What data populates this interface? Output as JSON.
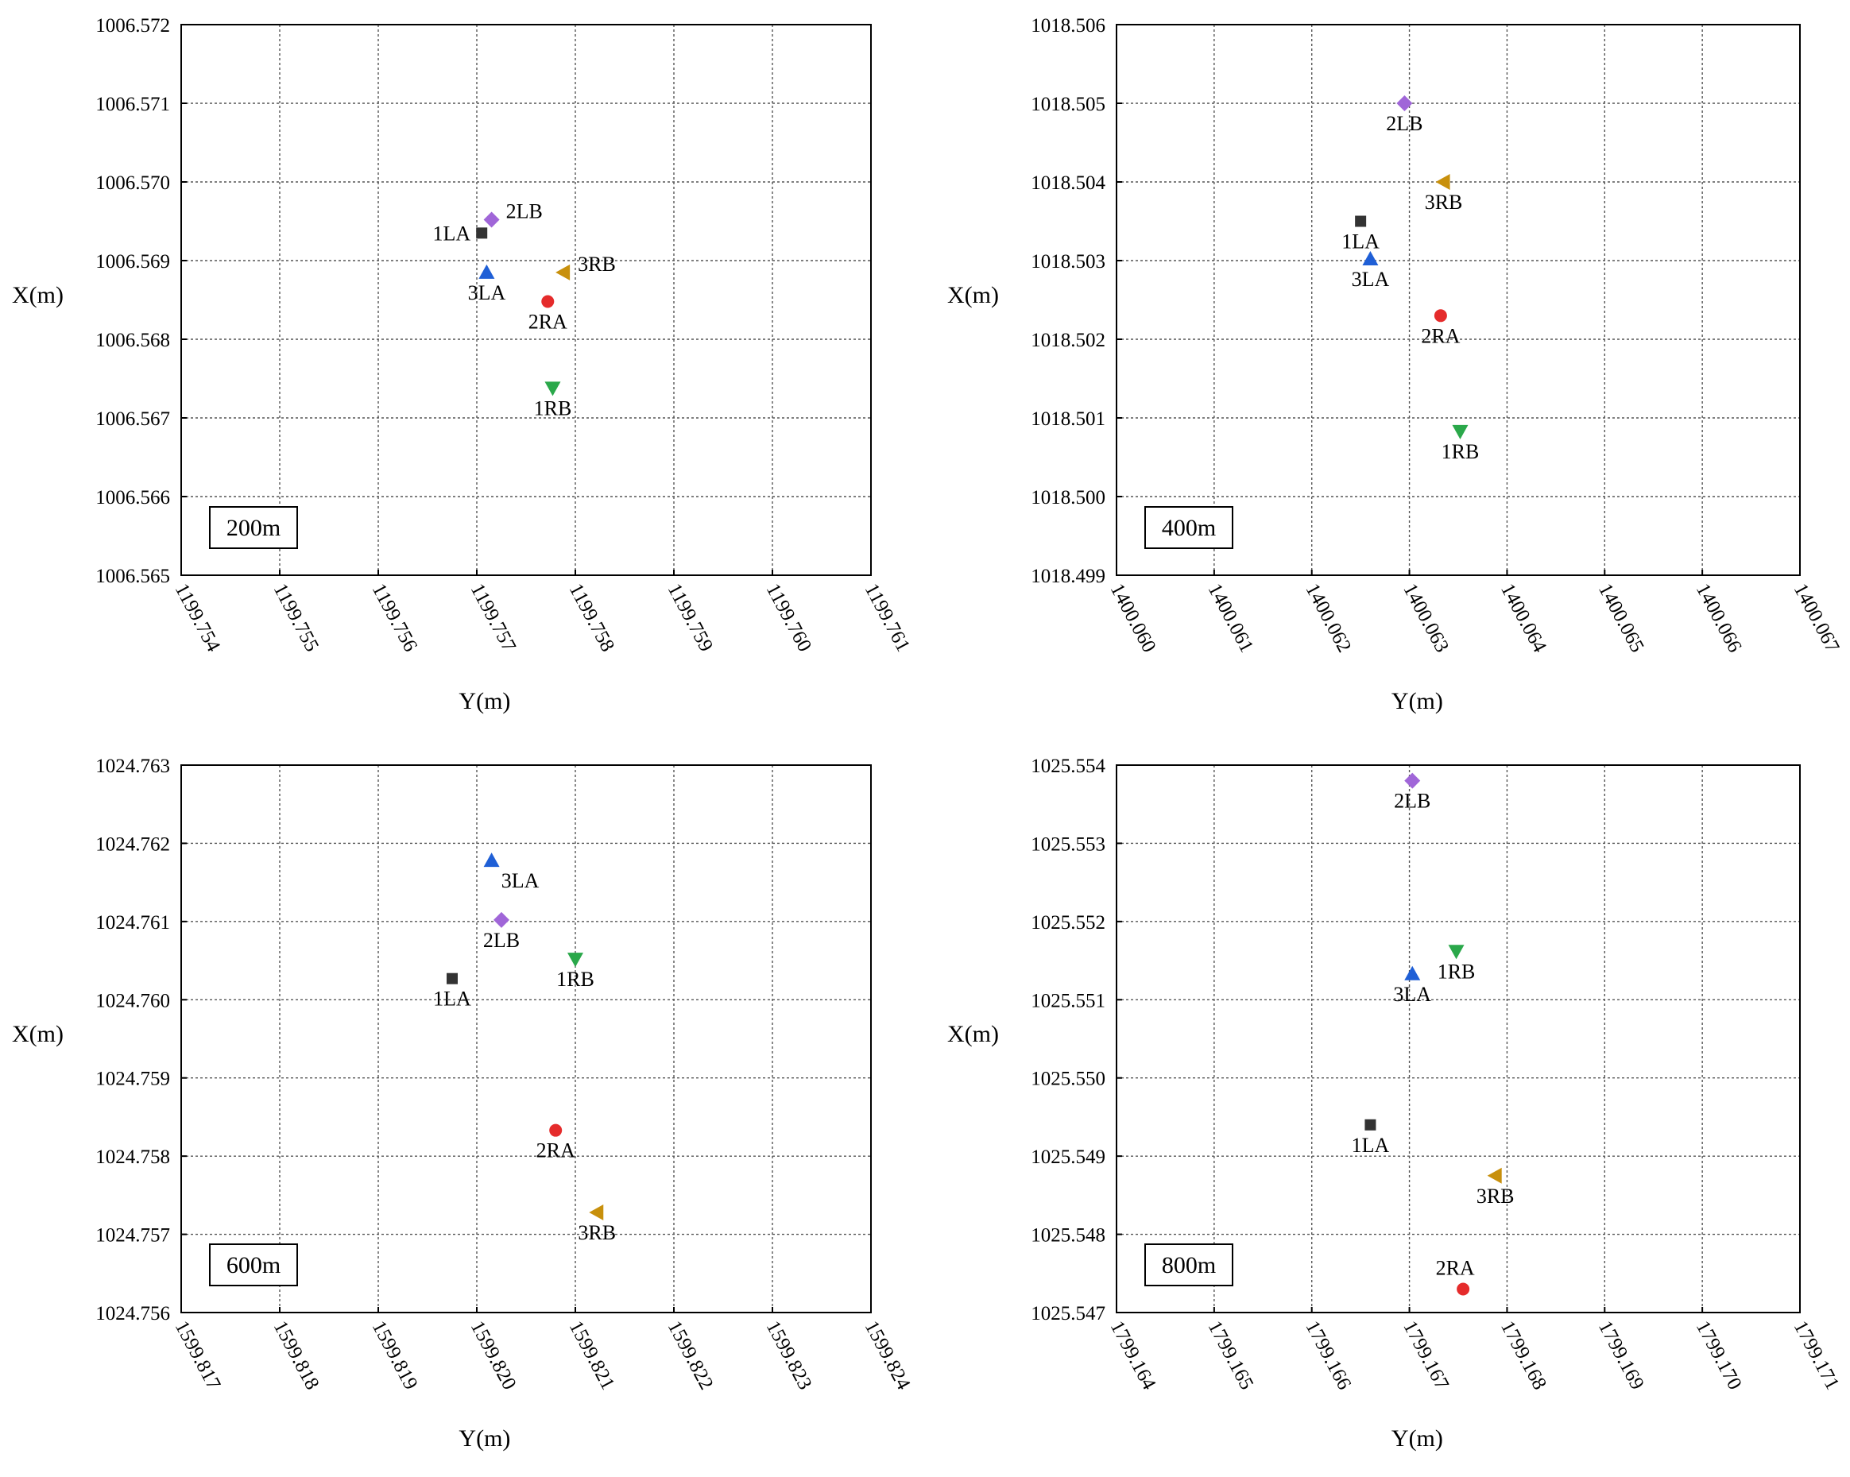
{
  "figure": {
    "x_axis_label": "Y(m)",
    "y_axis_label": "X(m)"
  },
  "chart_data": [
    {
      "type": "scatter",
      "panel_label": "200m",
      "xlabel": "Y(m)",
      "ylabel": "X(m)",
      "grid": true,
      "xlim": [
        1199.754,
        1199.761
      ],
      "ylim": [
        1006.565,
        1006.572
      ],
      "xticks": [
        "1199.754",
        "1199.755",
        "1199.756",
        "1199.757",
        "1199.758",
        "1199.759",
        "1199.760",
        "1199.761"
      ],
      "yticks": [
        "1006.565",
        "1006.566",
        "1006.567",
        "1006.568",
        "1006.569",
        "1006.570",
        "1006.571",
        "1006.572"
      ],
      "points": [
        {
          "label": "1LA",
          "marker": "square",
          "color": "#333333",
          "x": 1199.75705,
          "y": 1006.56935,
          "label_pos": "left"
        },
        {
          "label": "2LB",
          "marker": "diamond",
          "color": "#a066d8",
          "x": 1199.75715,
          "y": 1006.56952,
          "label_pos": "right"
        },
        {
          "label": "3LA",
          "marker": "triangle-up",
          "color": "#1f5fd6",
          "x": 1199.7571,
          "y": 1006.56885,
          "label_pos": "below"
        },
        {
          "label": "3RB",
          "marker": "triangle-left",
          "color": "#c8900c",
          "x": 1199.75788,
          "y": 1006.56885,
          "label_pos": "right"
        },
        {
          "label": "2RA",
          "marker": "circle",
          "color": "#e52b2b",
          "x": 1199.75772,
          "y": 1006.56848,
          "label_pos": "below"
        },
        {
          "label": "1RB",
          "marker": "triangle-down",
          "color": "#2aa84a",
          "x": 1199.75777,
          "y": 1006.56738,
          "label_pos": "below"
        }
      ]
    },
    {
      "type": "scatter",
      "panel_label": "400m",
      "xlabel": "Y(m)",
      "ylabel": "X(m)",
      "grid": true,
      "xlim": [
        1400.06,
        1400.067
      ],
      "ylim": [
        1018.499,
        1018.506
      ],
      "xticks": [
        "1400.060",
        "1400.061",
        "1400.062",
        "1400.063",
        "1400.064",
        "1400.065",
        "1400.066",
        "1400.067"
      ],
      "yticks": [
        "1018.499",
        "1018.500",
        "1018.501",
        "1018.502",
        "1018.503",
        "1018.504",
        "1018.505",
        "1018.506"
      ],
      "points": [
        {
          "label": "2LB",
          "marker": "diamond",
          "color": "#a066d8",
          "x": 1400.06295,
          "y": 1018.505,
          "label_pos": "below"
        },
        {
          "label": "3RB",
          "marker": "triangle-left",
          "color": "#c8900c",
          "x": 1400.06335,
          "y": 1018.504,
          "label_pos": "below"
        },
        {
          "label": "1LA",
          "marker": "square",
          "color": "#333333",
          "x": 1400.0625,
          "y": 1018.5035,
          "label_pos": "below"
        },
        {
          "label": "3LA",
          "marker": "triangle-up",
          "color": "#1f5fd6",
          "x": 1400.0626,
          "y": 1018.50302,
          "label_pos": "below"
        },
        {
          "label": "2RA",
          "marker": "circle",
          "color": "#e52b2b",
          "x": 1400.06332,
          "y": 1018.5023,
          "label_pos": "below"
        },
        {
          "label": "1RB",
          "marker": "triangle-down",
          "color": "#2aa84a",
          "x": 1400.06352,
          "y": 1018.50083,
          "label_pos": "below"
        }
      ]
    },
    {
      "type": "scatter",
      "panel_label": "600m",
      "xlabel": "Y(m)",
      "ylabel": "X(m)",
      "grid": true,
      "xlim": [
        1599.817,
        1599.824
      ],
      "ylim": [
        1024.756,
        1024.763
      ],
      "xticks": [
        "1599.817",
        "1599.818",
        "1599.819",
        "1599.820",
        "1599.821",
        "1599.822",
        "1599.823",
        "1599.824"
      ],
      "yticks": [
        "1024.756",
        "1024.757",
        "1024.758",
        "1024.759",
        "1024.760",
        "1024.761",
        "1024.762",
        "1024.763"
      ],
      "points": [
        {
          "label": "3LA",
          "marker": "triangle-up",
          "color": "#1f5fd6",
          "x": 1599.82015,
          "y": 1024.76178,
          "label_pos": "below-right"
        },
        {
          "label": "2LB",
          "marker": "diamond",
          "color": "#a066d8",
          "x": 1599.82025,
          "y": 1024.76102,
          "label_pos": "below"
        },
        {
          "label": "1RB",
          "marker": "triangle-down",
          "color": "#2aa84a",
          "x": 1599.821,
          "y": 1024.76052,
          "label_pos": "below"
        },
        {
          "label": "1LA",
          "marker": "square",
          "color": "#333333",
          "x": 1599.81975,
          "y": 1024.76027,
          "label_pos": "below"
        },
        {
          "label": "2RA",
          "marker": "circle",
          "color": "#e52b2b",
          "x": 1599.8208,
          "y": 1024.75833,
          "label_pos": "below"
        },
        {
          "label": "3RB",
          "marker": "triangle-left",
          "color": "#c8900c",
          "x": 1599.82122,
          "y": 1024.75728,
          "label_pos": "below"
        }
      ]
    },
    {
      "type": "scatter",
      "panel_label": "800m",
      "xlabel": "Y(m)",
      "ylabel": "X(m)",
      "grid": true,
      "xlim": [
        1799.164,
        1799.171
      ],
      "ylim": [
        1025.547,
        1025.554
      ],
      "xticks": [
        "1799.164",
        "1799.165",
        "1799.166",
        "1799.167",
        "1799.168",
        "1799.169",
        "1799.170",
        "1799.171"
      ],
      "yticks": [
        "1025.547",
        "1025.548",
        "1025.549",
        "1025.550",
        "1025.551",
        "1025.552",
        "1025.553",
        "1025.554"
      ],
      "points": [
        {
          "label": "2LB",
          "marker": "diamond",
          "color": "#a066d8",
          "x": 1799.16703,
          "y": 1025.5538,
          "label_pos": "below"
        },
        {
          "label": "1RB",
          "marker": "triangle-down",
          "color": "#2aa84a",
          "x": 1799.16748,
          "y": 1025.55162,
          "label_pos": "below"
        },
        {
          "label": "3LA",
          "marker": "triangle-up",
          "color": "#1f5fd6",
          "x": 1799.16703,
          "y": 1025.55133,
          "label_pos": "below"
        },
        {
          "label": "1LA",
          "marker": "square",
          "color": "#333333",
          "x": 1799.1666,
          "y": 1025.5494,
          "label_pos": "below"
        },
        {
          "label": "3RB",
          "marker": "triangle-left",
          "color": "#c8900c",
          "x": 1799.16788,
          "y": 1025.54875,
          "label_pos": "below"
        },
        {
          "label": "2RA",
          "marker": "circle",
          "color": "#e52b2b",
          "x": 1799.16755,
          "y": 1025.5473,
          "label_pos": "above"
        }
      ]
    }
  ]
}
